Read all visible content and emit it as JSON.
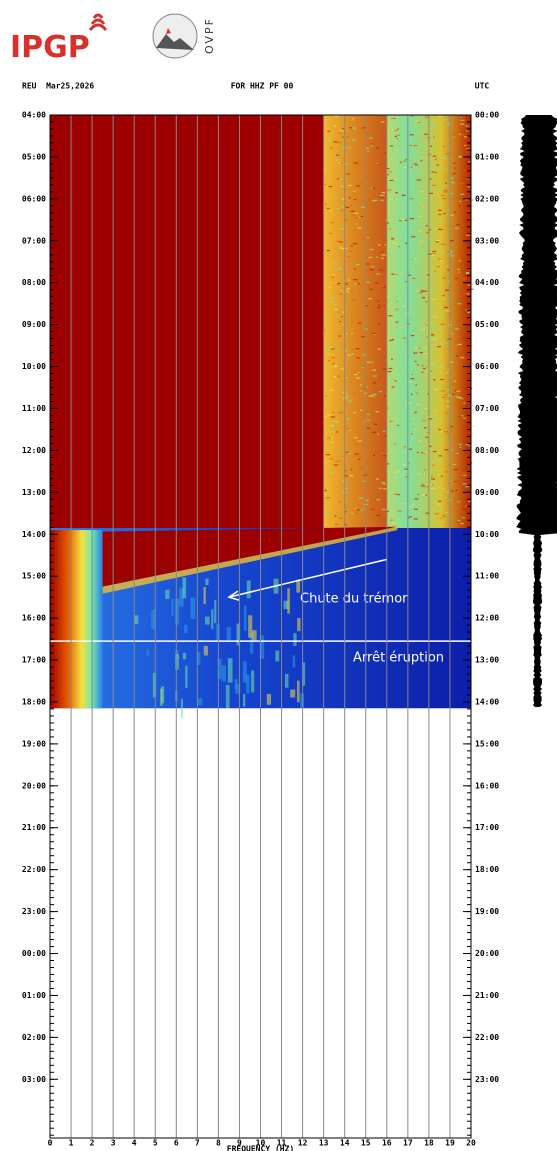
{
  "logos": [
    "IPGP",
    "OVPF"
  ],
  "chart_data": {
    "type": "spectrogram",
    "station_date": "REU  Mar25,2026",
    "title": "FOR HHZ PF 00",
    "timezone": "UTC",
    "xlabel": "FREQUENCY (HZ)",
    "xlim": [
      0,
      20
    ],
    "xticks": [
      0,
      1,
      2,
      3,
      4,
      5,
      6,
      7,
      8,
      9,
      10,
      11,
      12,
      13,
      14,
      15,
      16,
      17,
      18,
      19,
      20
    ],
    "ylim": [
      0,
      24.4
    ],
    "yticks": [
      {
        "value": 0,
        "label": "04:00"
      },
      {
        "value": 1,
        "label": "05:00"
      },
      {
        "value": 2,
        "label": "06:00"
      },
      {
        "value": 3,
        "label": "07:00"
      },
      {
        "value": 4,
        "label": "08:00"
      },
      {
        "value": 5,
        "label": "09:00"
      },
      {
        "value": 6,
        "label": "10:00"
      },
      {
        "value": 7,
        "label": "11:00"
      },
      {
        "value": 8,
        "label": "12:00"
      },
      {
        "value": 9,
        "label": "13:00"
      },
      {
        "value": 10,
        "label": "14:00"
      },
      {
        "value": 11,
        "label": "15:00"
      },
      {
        "value": 12,
        "label": "16:00"
      },
      {
        "value": 13,
        "label": "17:00"
      },
      {
        "value": 14,
        "label": "18:00"
      },
      {
        "value": 15,
        "label": "19:00"
      },
      {
        "value": 16,
        "label": "20:00"
      },
      {
        "value": 17,
        "label": "21:00"
      },
      {
        "value": 18,
        "label": "22:00"
      },
      {
        "value": 19,
        "label": "23:00"
      },
      {
        "value": 20,
        "label": "00:00"
      },
      {
        "value": 21,
        "label": "01:00"
      },
      {
        "value": 22,
        "label": "02:00"
      },
      {
        "value": 23,
        "label": "03:00"
      }
    ],
    "y2lim": [
      0,
      24.4
    ],
    "y2ticks": [
      {
        "value": 0,
        "label": "00:00"
      },
      {
        "value": 1,
        "label": "01:00"
      },
      {
        "value": 2,
        "label": "02:00"
      },
      {
        "value": 3,
        "label": "03:00"
      },
      {
        "value": 4,
        "label": "04:00"
      },
      {
        "value": 5,
        "label": "05:00"
      },
      {
        "value": 6,
        "label": "06:00"
      },
      {
        "value": 7,
        "label": "07:00"
      },
      {
        "value": 8,
        "label": "08:00"
      },
      {
        "value": 9,
        "label": "09:00"
      },
      {
        "value": 10,
        "label": "10:00"
      },
      {
        "value": 11,
        "label": "11:00"
      },
      {
        "value": 12,
        "label": "12:00"
      },
      {
        "value": 13,
        "label": "13:00"
      },
      {
        "value": 14,
        "label": "14:00"
      },
      {
        "value": 15,
        "label": "15:00"
      },
      {
        "value": 16,
        "label": "16:00"
      },
      {
        "value": 17,
        "label": "17:00"
      },
      {
        "value": 18,
        "label": "18:00"
      },
      {
        "value": 19,
        "label": "19:00"
      },
      {
        "value": 20,
        "label": "20:00"
      },
      {
        "value": 21,
        "label": "21:00"
      },
      {
        "value": 22,
        "label": "22:00"
      },
      {
        "value": 23,
        "label": "23:00"
      }
    ],
    "annotations": [
      "Chute du trémor",
      "Arrêt éruption"
    ]
  }
}
